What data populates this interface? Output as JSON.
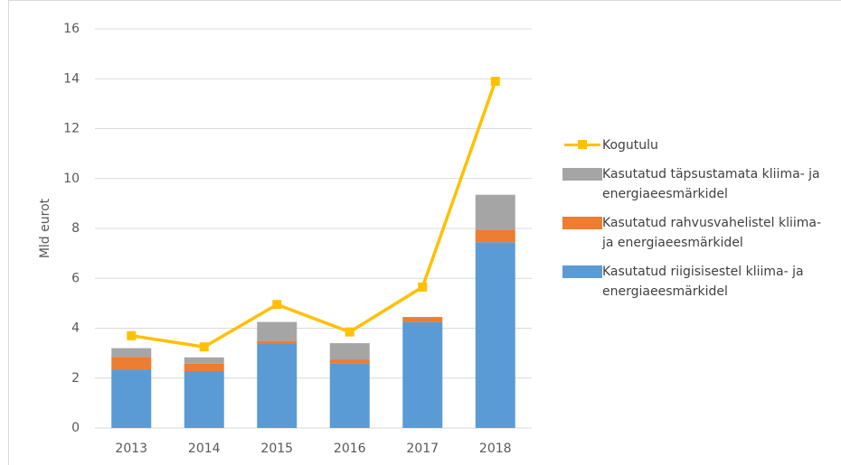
{
  "chart_data": {
    "type": "bar",
    "stacked": true,
    "ylabel": "Mld eurot",
    "categories": [
      "2013",
      "2014",
      "2015",
      "2016",
      "2017",
      "2018"
    ],
    "series": [
      {
        "name": "Kasutatud riigisisestel kliima- ja energiaeesmärkidel",
        "color": "#5b9bd5",
        "values": [
          2.35,
          2.28,
          3.4,
          2.6,
          4.25,
          7.45
        ]
      },
      {
        "name": "Kasutatud rahvusvahelistel kliima- ja energiaeesmärkidel",
        "color": "#ed7d31",
        "values": [
          0.5,
          0.3,
          0.1,
          0.15,
          0.2,
          0.5
        ]
      },
      {
        "name": "Kasutatud täpsustamata kliima- ja energiaeesmärkidel",
        "color": "#a5a5a5",
        "values": [
          0.35,
          0.25,
          0.75,
          0.65,
          0,
          1.4
        ]
      },
      {
        "name": "Kogutulu",
        "type": "line",
        "color": "#ffc000",
        "values": [
          3.7,
          3.25,
          4.95,
          3.85,
          5.65,
          13.9
        ]
      }
    ],
    "ylim": [
      0,
      16
    ],
    "yticks": [
      0,
      2,
      4,
      6,
      8,
      10,
      12,
      14,
      16
    ],
    "grid": true,
    "legend": "right"
  }
}
